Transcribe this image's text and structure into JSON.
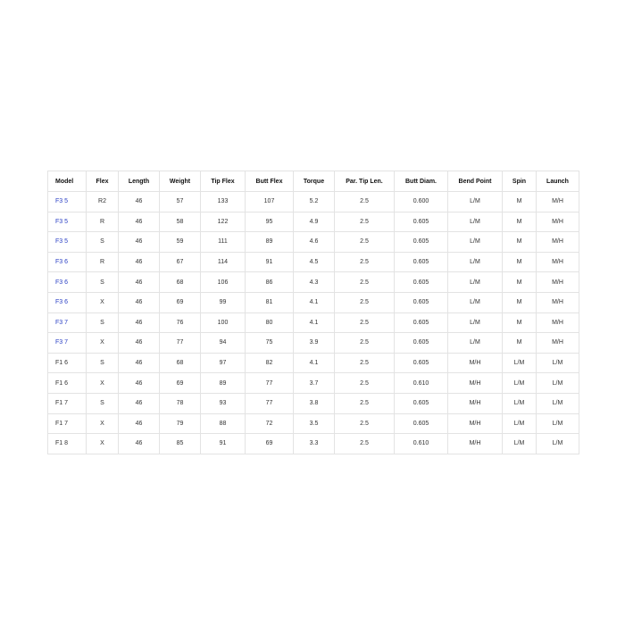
{
  "table": {
    "headers": [
      "Model",
      "Flex",
      "Length",
      "Weight",
      "Tip Flex",
      "Butt Flex",
      "Torque",
      "Par. Tip Len.",
      "Butt Diam.",
      "Bend Point",
      "Spin",
      "Launch"
    ],
    "link_color": "#2a3fc4",
    "rows": [
      {
        "model": "F3 5",
        "link": true,
        "cells": [
          "R2",
          "46",
          "57",
          "133",
          "107",
          "5.2",
          "2.5",
          "0.600",
          "L/M",
          "M",
          "M/H"
        ]
      },
      {
        "model": "F3 5",
        "link": true,
        "cells": [
          "R",
          "46",
          "58",
          "122",
          "95",
          "4.9",
          "2.5",
          "0.605",
          "L/M",
          "M",
          "M/H"
        ]
      },
      {
        "model": "F3 5",
        "link": true,
        "cells": [
          "S",
          "46",
          "59",
          "111",
          "89",
          "4.6",
          "2.5",
          "0.605",
          "L/M",
          "M",
          "M/H"
        ]
      },
      {
        "model": "F3 6",
        "link": true,
        "cells": [
          "R",
          "46",
          "67",
          "114",
          "91",
          "4.5",
          "2.5",
          "0.605",
          "L/M",
          "M",
          "M/H"
        ]
      },
      {
        "model": "F3 6",
        "link": true,
        "cells": [
          "S",
          "46",
          "68",
          "106",
          "86",
          "4.3",
          "2.5",
          "0.605",
          "L/M",
          "M",
          "M/H"
        ]
      },
      {
        "model": "F3 6",
        "link": true,
        "cells": [
          "X",
          "46",
          "69",
          "99",
          "81",
          "4.1",
          "2.5",
          "0.605",
          "L/M",
          "M",
          "M/H"
        ]
      },
      {
        "model": "F3 7",
        "link": true,
        "cells": [
          "S",
          "46",
          "76",
          "100",
          "80",
          "4.1",
          "2.5",
          "0.605",
          "L/M",
          "M",
          "M/H"
        ]
      },
      {
        "model": "F3 7",
        "link": true,
        "cells": [
          "X",
          "46",
          "77",
          "94",
          "75",
          "3.9",
          "2.5",
          "0.605",
          "L/M",
          "M",
          "M/H"
        ]
      },
      {
        "model": "F1 6",
        "link": false,
        "cells": [
          "S",
          "46",
          "68",
          "97",
          "82",
          "4.1",
          "2.5",
          "0.605",
          "M/H",
          "L/M",
          "L/M"
        ]
      },
      {
        "model": "F1 6",
        "link": false,
        "cells": [
          "X",
          "46",
          "69",
          "89",
          "77",
          "3.7",
          "2.5",
          "0.610",
          "M/H",
          "L/M",
          "L/M"
        ]
      },
      {
        "model": "F1 7",
        "link": false,
        "cells": [
          "S",
          "46",
          "78",
          "93",
          "77",
          "3.8",
          "2.5",
          "0.605",
          "M/H",
          "L/M",
          "L/M"
        ]
      },
      {
        "model": "F1 7",
        "link": false,
        "cells": [
          "X",
          "46",
          "79",
          "88",
          "72",
          "3.5",
          "2.5",
          "0.605",
          "M/H",
          "L/M",
          "L/M"
        ]
      },
      {
        "model": "F1 8",
        "link": false,
        "cells": [
          "X",
          "46",
          "85",
          "91",
          "69",
          "3.3",
          "2.5",
          "0.610",
          "M/H",
          "L/M",
          "L/M"
        ]
      }
    ]
  }
}
